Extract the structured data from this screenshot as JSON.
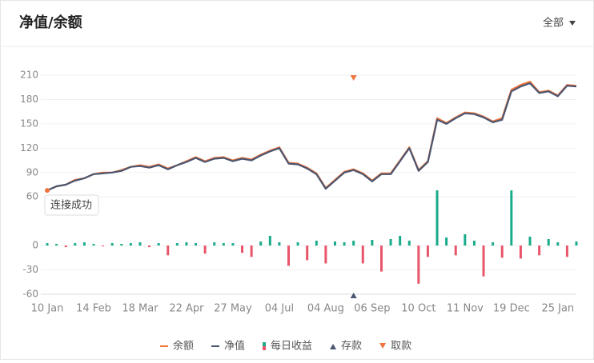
{
  "header": {
    "title": "净值/余额",
    "filter": "全部"
  },
  "toast": "连接成功",
  "chart_data": {
    "type": "line",
    "x": [
      0,
      1,
      2,
      3,
      4,
      5,
      6,
      7,
      8,
      9,
      10,
      11,
      12,
      13,
      14,
      15,
      16,
      17,
      18,
      19,
      20,
      21,
      22,
      23,
      24,
      25,
      26,
      27,
      28,
      29,
      30,
      31,
      32,
      33,
      34,
      35,
      36,
      37,
      38,
      39,
      40,
      41,
      42,
      43,
      44,
      45,
      46,
      47,
      48,
      49,
      50,
      51,
      52,
      53,
      54,
      55,
      56,
      57
    ],
    "xlim": [
      0,
      57
    ],
    "xticks": [
      {
        "value": 0,
        "label": "10 Jan"
      },
      {
        "value": 5,
        "label": "14 Feb"
      },
      {
        "value": 10,
        "label": "18 Mar"
      },
      {
        "value": 15,
        "label": "22 Apr"
      },
      {
        "value": 20,
        "label": "27 May"
      },
      {
        "value": 25,
        "label": "04 Jul"
      },
      {
        "value": 30,
        "label": "04 Aug"
      },
      {
        "value": 35,
        "label": "06 Sep"
      },
      {
        "value": 40,
        "label": "10 Oct"
      },
      {
        "value": 45,
        "label": "11 Nov"
      },
      {
        "value": 50,
        "label": "19 Dec"
      },
      {
        "value": 55,
        "label": "25 Jan"
      }
    ],
    "ylim": [
      -60,
      210
    ],
    "yticks": [
      -60,
      -30,
      0,
      60,
      90,
      120,
      150,
      180,
      210
    ],
    "grid": true,
    "series": [
      {
        "name": "余额",
        "type": "line",
        "color": "#f0743e",
        "values": [
          68,
          73,
          75,
          81,
          83,
          88,
          90,
          90,
          93,
          97,
          99,
          97,
          100,
          95,
          99,
          104,
          109,
          104,
          108,
          109,
          105,
          108,
          106,
          112,
          117,
          121,
          102,
          101,
          96,
          89,
          71,
          81,
          91,
          94,
          89,
          80,
          89,
          89,
          105,
          121,
          93,
          104,
          157,
          151,
          158,
          164,
          163,
          159,
          153,
          157,
          192,
          198,
          202,
          189,
          191,
          185,
          198,
          197
        ]
      },
      {
        "name": "净值",
        "type": "line",
        "color": "#4a5670",
        "values": [
          68,
          73,
          75,
          80,
          83,
          88,
          89,
          90,
          92,
          97,
          98,
          96,
          99,
          94,
          99,
          103,
          108,
          103,
          107,
          108,
          104,
          107,
          105,
          111,
          116,
          120,
          101,
          100,
          95,
          88,
          70,
          80,
          90,
          93,
          88,
          79,
          88,
          88,
          104,
          120,
          92,
          103,
          155,
          150,
          157,
          163,
          162,
          158,
          152,
          155,
          190,
          196,
          200,
          188,
          190,
          184,
          197,
          196
        ]
      },
      {
        "name": "每日收益",
        "type": "bar",
        "color": "#1aab8a",
        "negative_color": "#e8556a",
        "values": [
          3,
          2,
          -2,
          3,
          4,
          2,
          -1,
          3,
          2,
          3,
          4,
          -2,
          3,
          -12,
          3,
          4,
          3,
          -10,
          4,
          3,
          3,
          -9,
          -14,
          5,
          12,
          4,
          -25,
          4,
          -18,
          6,
          -22,
          5,
          4,
          6,
          -22,
          7,
          -32,
          8,
          12,
          6,
          -47,
          -14,
          68,
          10,
          -12,
          14,
          6,
          -38,
          4,
          -15,
          68,
          -16,
          11,
          -12,
          8,
          4,
          -14,
          5
        ]
      }
    ],
    "markers": [
      {
        "name": "存款",
        "color": "#4a5670",
        "position": "bottom",
        "x": [
          33
        ]
      },
      {
        "name": "取款",
        "color": "#f0743e",
        "position": "top",
        "x": [
          33
        ]
      }
    ]
  }
}
